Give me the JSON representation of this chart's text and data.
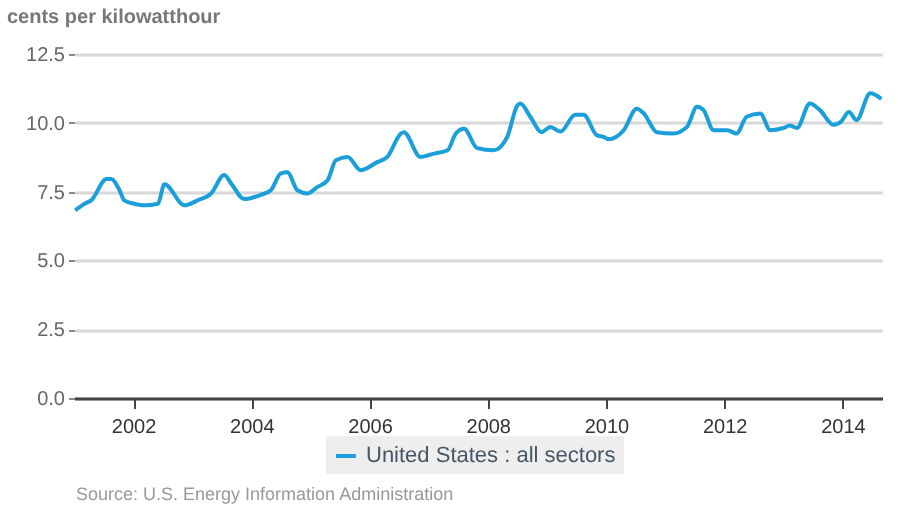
{
  "chart_data": {
    "type": "line",
    "ylabel": "cents per kilowatthour",
    "annotations": [
      "Source: U.S. Energy Information Administration"
    ],
    "x": [
      2001.02,
      2001.18,
      2001.29,
      2001.55,
      2001.63,
      2001.77,
      2001.85,
      2002.02,
      2002.19,
      2002.42,
      2002.53,
      2002.87,
      2003.09,
      2003.32,
      2003.54,
      2003.66,
      2003.88,
      2004.16,
      2004.33,
      2004.5,
      2004.61,
      2004.78,
      2004.95,
      2005.12,
      2005.29,
      2005.43,
      2005.63,
      2005.85,
      2006.13,
      2006.3,
      2006.53,
      2006.58,
      2006.86,
      2007.09,
      2007.32,
      2007.46,
      2007.6,
      2007.82,
      2008.1,
      2008.33,
      2008.5,
      2008.55,
      2008.72,
      2008.91,
      2009.06,
      2009.23,
      2009.48,
      2009.62,
      2009.85,
      2009.96,
      2010.04,
      2010.3,
      2010.52,
      2010.64,
      2010.86,
      2011.14,
      2011.37,
      2011.54,
      2011.65,
      2011.82,
      2012.05,
      2012.21,
      2012.38,
      2012.61,
      2012.78,
      2013.0,
      2013.11,
      2013.23,
      2013.45,
      2013.62,
      2013.85,
      2013.98,
      2014.11,
      2014.24,
      2014.47,
      2014.66
    ],
    "series": [
      {
        "name": "United States : all sectors",
        "color": "#1a9fdb",
        "values": [
          6.82,
          7.06,
          7.18,
          7.96,
          7.96,
          7.55,
          7.18,
          7.06,
          7.0,
          7.06,
          7.77,
          7.0,
          7.18,
          7.43,
          8.1,
          7.79,
          7.23,
          7.38,
          7.55,
          8.16,
          8.2,
          7.55,
          7.43,
          7.67,
          7.91,
          8.64,
          8.76,
          8.28,
          8.57,
          8.76,
          9.61,
          9.66,
          8.76,
          8.88,
          9.0,
          9.61,
          9.78,
          9.08,
          9.0,
          9.49,
          10.63,
          10.7,
          10.22,
          9.66,
          9.85,
          9.68,
          10.29,
          10.29,
          9.54,
          9.49,
          9.4,
          9.73,
          10.51,
          10.34,
          9.66,
          9.61,
          9.85,
          10.58,
          10.46,
          9.73,
          9.73,
          9.61,
          10.22,
          10.34,
          9.73,
          9.81,
          9.9,
          9.81,
          10.7,
          10.46,
          9.93,
          10.05,
          10.39,
          10.1,
          11.07,
          10.87
        ]
      }
    ],
    "xlim": [
      2001,
      2014.67
    ],
    "xticks": [
      2002,
      2004,
      2006,
      2008,
      2010,
      2012,
      2014
    ],
    "ylim": [
      0,
      12.5
    ],
    "yticks": [
      {
        "value": 0,
        "label": "0.0"
      },
      {
        "value": 2.5,
        "label": "2.5"
      },
      {
        "value": 5,
        "label": "5.0"
      },
      {
        "value": 7.5,
        "label": "7.5"
      },
      {
        "value": 10,
        "label": "10.0"
      },
      {
        "value": 12.5,
        "label": "12.5"
      }
    ],
    "grid": "y",
    "legend": "bottom",
    "marker": "none",
    "line_style": "solid"
  }
}
